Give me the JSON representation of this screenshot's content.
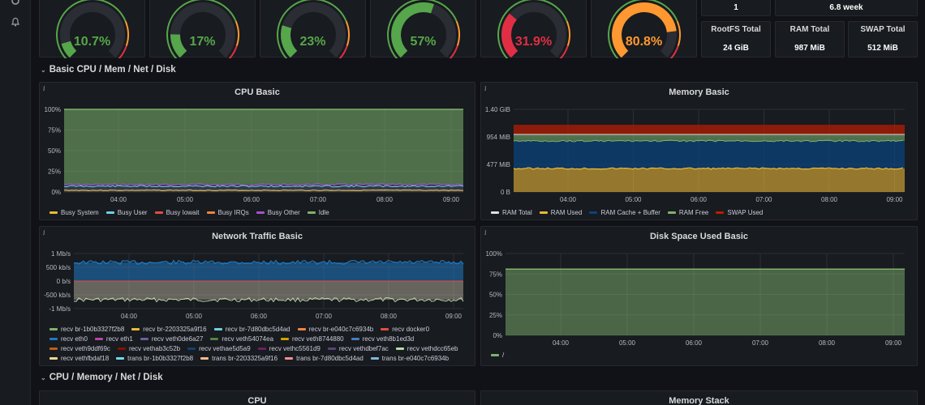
{
  "gauges": [
    {
      "value": "10.7%",
      "fraction": 0.107,
      "color": "#56a64b"
    },
    {
      "value": "17%",
      "fraction": 0.17,
      "color": "#56a64b"
    },
    {
      "value": "23%",
      "fraction": 0.23,
      "color": "#56a64b"
    },
    {
      "value": "57%",
      "fraction": 0.57,
      "color": "#56a64b"
    },
    {
      "value": "31.9%",
      "fraction": 0.319,
      "color": "#e02f44"
    },
    {
      "value": "80.8%",
      "fraction": 0.808,
      "color": "#ff9830"
    }
  ],
  "top_stats": {
    "cpu_cores": "1",
    "uptime": "6.8 week"
  },
  "stats": [
    {
      "title": "RootFS Total",
      "value": "24 GiB"
    },
    {
      "title": "RAM Total",
      "value": "987 MiB"
    },
    {
      "title": "SWAP Total",
      "value": "512 MiB"
    }
  ],
  "rows": {
    "basic": "Basic CPU / Mem / Net / Disk",
    "cpu_mem": "CPU / Memory / Net / Disk"
  },
  "panels": {
    "cpu_basic": "CPU Basic",
    "memory_basic": "Memory Basic",
    "network_basic": "Network Traffic Basic",
    "disk_basic": "Disk Space Used Basic",
    "cpu": "CPU",
    "memory_stack": "Memory Stack",
    "info": "i"
  },
  "x_ticks": [
    "04:00",
    "05:00",
    "06:00",
    "07:00",
    "08:00",
    "09:00"
  ],
  "chart_data": [
    {
      "type": "area",
      "title": "CPU Basic",
      "y_ticks": [
        "100%",
        "75%",
        "50%",
        "25%",
        "0%"
      ],
      "ylim": [
        0,
        100
      ],
      "series": [
        {
          "name": "Busy System",
          "color": "#eab839",
          "values": [
            2,
            2,
            2,
            2,
            2,
            2
          ]
        },
        {
          "name": "Busy User",
          "color": "#6ed0e0",
          "values": [
            6,
            6,
            6,
            6,
            6,
            6
          ]
        },
        {
          "name": "Busy Iowait",
          "color": "#e24d42",
          "values": [
            0,
            0,
            0,
            0,
            0,
            0
          ]
        },
        {
          "name": "Busy IRQs",
          "color": "#ef843c",
          "values": [
            0,
            0,
            0,
            0,
            0,
            0
          ]
        },
        {
          "name": "Busy Other",
          "color": "#a352cc",
          "values": [
            1,
            1,
            1,
            1,
            1,
            1
          ]
        },
        {
          "name": "Idle",
          "color": "#7eb26d",
          "values": [
            91,
            91,
            91,
            91,
            91,
            91
          ]
        }
      ]
    },
    {
      "type": "area",
      "title": "Memory Basic",
      "y_ticks": [
        "1.40 GiB",
        "954 MiB",
        "477 MiB",
        "0 B"
      ],
      "series": [
        {
          "name": "RAM Total",
          "color": "#e0e0e0"
        },
        {
          "name": "RAM Used",
          "color": "#eab839"
        },
        {
          "name": "RAM Cache + Buffer",
          "color": "#0a437c"
        },
        {
          "name": "RAM Free",
          "color": "#7eb26d"
        },
        {
          "name": "SWAP Used",
          "color": "#bf1b00"
        }
      ]
    },
    {
      "type": "area",
      "title": "Network Traffic Basic",
      "y_ticks": [
        "1 Mb/s",
        "500 kb/s",
        "0 b/s",
        "-500 kb/s",
        "-1 Mb/s"
      ],
      "series": [
        {
          "name": "recv br-1b0b3327f2b8",
          "color": "#7eb26d"
        },
        {
          "name": "recv br-2203325a9f16",
          "color": "#eab839"
        },
        {
          "name": "recv br-7d80dbc5d4ad",
          "color": "#6ed0e0"
        },
        {
          "name": "recv br-e040c7c6934b",
          "color": "#ef843c"
        },
        {
          "name": "recv docker0",
          "color": "#e24d42"
        },
        {
          "name": "recv eth0",
          "color": "#1f78c1"
        },
        {
          "name": "recv eth1",
          "color": "#ba43a9"
        },
        {
          "name": "recv veth0de6a27",
          "color": "#705da0"
        },
        {
          "name": "recv veth54074ea",
          "color": "#508642"
        },
        {
          "name": "recv veth8744880",
          "color": "#cca300"
        },
        {
          "name": "recv veth8b1ed3d",
          "color": "#447ebc"
        },
        {
          "name": "recv veth9ddf69c",
          "color": "#c15c17"
        },
        {
          "name": "recv vethab3c52b",
          "color": "#890f02"
        },
        {
          "name": "recv vethae5d5a9",
          "color": "#0a437c"
        },
        {
          "name": "recv vethc5561d9",
          "color": "#6d1f62"
        },
        {
          "name": "recv vethdbef7ac",
          "color": "#584477"
        },
        {
          "name": "recv vethdcc65eb",
          "color": "#b7dbab"
        },
        {
          "name": "recv vethfbdaf18",
          "color": "#f4d598"
        },
        {
          "name": "trans br-1b0b3327f2b8",
          "color": "#70dbed"
        },
        {
          "name": "trans br-2203325a9f16",
          "color": "#f9ba8f"
        },
        {
          "name": "trans br-7d80dbc5d4ad",
          "color": "#f29191"
        },
        {
          "name": "trans br-e040c7c6934b",
          "color": "#82b5d8"
        }
      ]
    },
    {
      "type": "area",
      "title": "Disk Space Used Basic",
      "y_ticks": [
        "100%",
        "75%",
        "50%",
        "25%",
        "0%"
      ],
      "ylim": [
        0,
        100
      ],
      "series": [
        {
          "name": "/",
          "color": "#7eb26d",
          "values": [
            81,
            81,
            81,
            81,
            81,
            81
          ]
        }
      ]
    }
  ]
}
